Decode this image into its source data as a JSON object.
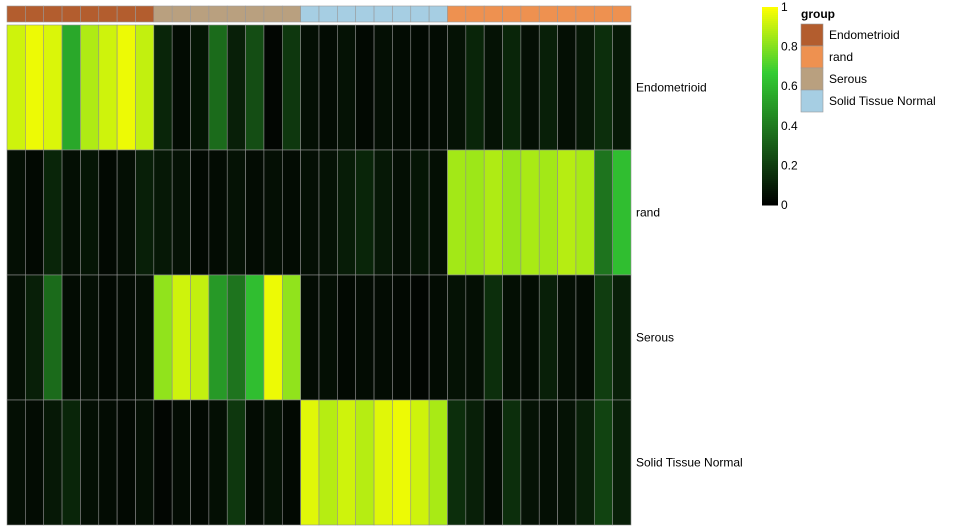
{
  "chart_data": {
    "type": "heatmap",
    "title": "",
    "annotation": {
      "title": "group",
      "levels": [
        {
          "name": "Endometrioid",
          "color": "#B35D2E"
        },
        {
          "name": "rand",
          "color": "#EE9150"
        },
        {
          "name": "Serous",
          "color": "#B9A07F"
        },
        {
          "name": "Solid Tissue Normal",
          "color": "#A6CEE3"
        }
      ],
      "columns": [
        "Endometrioid",
        "Endometrioid",
        "Endometrioid",
        "Endometrioid",
        "Endometrioid",
        "Endometrioid",
        "Endometrioid",
        "Endometrioid",
        "Serous",
        "Serous",
        "Serous",
        "Serous",
        "Serous",
        "Serous",
        "Serous",
        "Serous",
        "Solid Tissue Normal",
        "Solid Tissue Normal",
        "Solid Tissue Normal",
        "Solid Tissue Normal",
        "Solid Tissue Normal",
        "Solid Tissue Normal",
        "Solid Tissue Normal",
        "Solid Tissue Normal",
        "rand",
        "rand",
        "rand",
        "rand",
        "rand",
        "rand",
        "rand",
        "rand",
        "rand",
        "rand"
      ]
    },
    "rows": [
      "Endometrioid",
      "rand",
      "Serous",
      "Solid Tissue Normal"
    ],
    "values": [
      [
        0.92,
        0.97,
        0.94,
        0.55,
        0.87,
        0.92,
        0.97,
        0.9,
        0.12,
        0.04,
        0.07,
        0.35,
        0.1,
        0.25,
        0.02,
        0.18,
        0.05,
        0.04,
        0.06,
        0.03,
        0.05,
        0.04,
        0.03,
        0.04,
        0.06,
        0.12,
        0.06,
        0.12,
        0.05,
        0.1,
        0.05,
        0.08,
        0.15,
        0.08
      ],
      [
        0.05,
        0.03,
        0.12,
        0.05,
        0.07,
        0.03,
        0.05,
        0.1,
        0.08,
        0.06,
        0.03,
        0.04,
        0.06,
        0.04,
        0.05,
        0.04,
        0.05,
        0.06,
        0.09,
        0.12,
        0.08,
        0.05,
        0.07,
        0.05,
        0.85,
        0.84,
        0.87,
        0.83,
        0.86,
        0.85,
        0.88,
        0.86,
        0.38,
        0.62
      ],
      [
        0.05,
        0.1,
        0.35,
        0.04,
        0.05,
        0.03,
        0.04,
        0.05,
        0.82,
        0.92,
        0.9,
        0.5,
        0.38,
        0.62,
        0.97,
        0.82,
        0.04,
        0.05,
        0.03,
        0.04,
        0.04,
        0.03,
        0.02,
        0.04,
        0.06,
        0.05,
        0.15,
        0.05,
        0.04,
        0.1,
        0.05,
        0.04,
        0.2,
        0.1
      ],
      [
        0.05,
        0.04,
        0.08,
        0.12,
        0.05,
        0.04,
        0.03,
        0.05,
        0.02,
        0.04,
        0.03,
        0.05,
        0.18,
        0.04,
        0.06,
        0.03,
        0.95,
        0.88,
        0.92,
        0.88,
        0.95,
        0.97,
        0.92,
        0.86,
        0.15,
        0.1,
        0.04,
        0.15,
        0.06,
        0.05,
        0.06,
        0.1,
        0.22,
        0.1
      ]
    ],
    "color_scale": {
      "min": 0,
      "max": 1,
      "ticks": [
        0,
        0.2,
        0.4,
        0.6,
        0.8,
        1
      ],
      "tick_labels": [
        "0",
        "0.2",
        "0.4",
        "0.6",
        "0.8",
        "1"
      ],
      "colors": [
        "#000000",
        "#1A661A",
        "#33CC33",
        "#FFFF00"
      ]
    }
  }
}
